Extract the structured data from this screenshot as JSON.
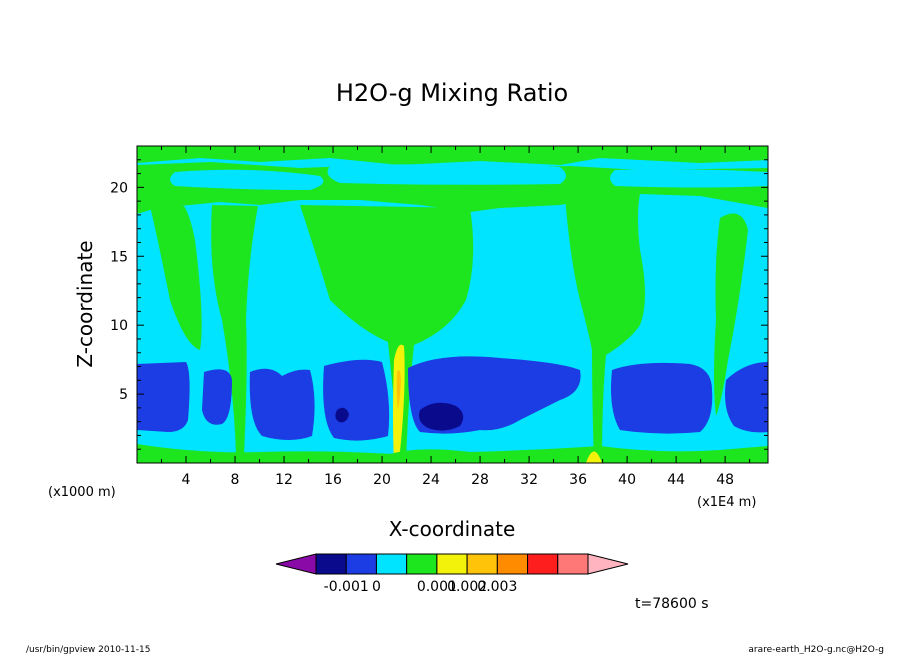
{
  "chart_data": {
    "type": "contour",
    "title": "H2O-g Mixing Ratio",
    "xlabel": "X-coordinate",
    "ylabel": "Z-coordinate",
    "x_unit": "(x1E4 m)",
    "y_unit": "(x1000 m)",
    "xlim": [
      0,
      51.5
    ],
    "ylim": [
      0,
      23
    ],
    "x_ticks": [
      "4",
      "8",
      "12",
      "16",
      "20",
      "24",
      "28",
      "32",
      "36",
      "40",
      "44",
      "48"
    ],
    "y_ticks": [
      "5",
      "10",
      "15",
      "20"
    ],
    "colorbar": {
      "colors": [
        "#8a0aa8",
        "#0a0a8c",
        "#1c3ce4",
        "#00e4ff",
        "#1ee61e",
        "#f2f20a",
        "#ffc40a",
        "#ff8c00",
        "#ff1e1e",
        "#ff7878",
        "#ffb4c0"
      ],
      "labels": [
        "-0.001",
        "0",
        "0.001",
        "0.002",
        "0.003"
      ]
    },
    "time_label": "t=78600 s",
    "regions": {
      "dry_layer_z": [
        1.5,
        7
      ],
      "moist_layer_z": [
        7,
        20
      ],
      "upper_green_band_z": [
        19.5,
        22
      ],
      "plumes_x": [
        20.8,
        37.5
      ],
      "darkest_anomaly": {
        "x": 25,
        "z": 3.4
      }
    }
  },
  "footer": {
    "left": "/usr/bin/gpview   2010-11-15",
    "right": "arare-earth_H2O-g.nc@H2O-g"
  }
}
